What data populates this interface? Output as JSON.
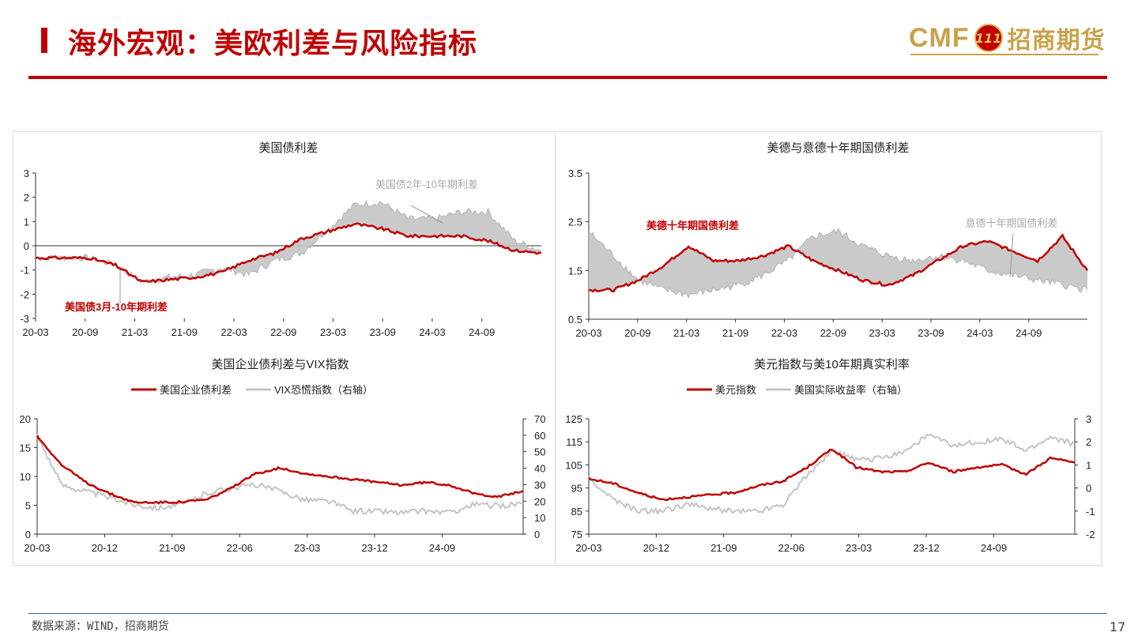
{
  "header": {
    "title": "海外宏观：美欧利差与风险指标",
    "logo_latin": "CMF",
    "logo_badge": "111",
    "logo_cn": "招商期货"
  },
  "footer": {
    "source": "数据来源：WIND，招商期货",
    "page": "17"
  },
  "colors": {
    "red": "#c00000",
    "gray": "#c4c4c4"
  },
  "chart_data": [
    {
      "type": "area",
      "title": "美国债利差",
      "x_ticks": [
        "20-03",
        "20-09",
        "21-03",
        "21-09",
        "22-03",
        "22-09",
        "23-03",
        "23-09",
        "24-03",
        "24-09"
      ],
      "ylim": [
        -3,
        3
      ],
      "y_ticks": [
        "-3",
        "-2",
        "-1",
        "0",
        "1",
        "2",
        "3"
      ],
      "grid": false,
      "x": [
        "20-03",
        "20-06",
        "20-09",
        "20-12",
        "21-03",
        "21-06",
        "21-09",
        "21-12",
        "22-03",
        "22-06",
        "22-09",
        "22-12",
        "23-03",
        "23-06",
        "23-09",
        "23-12",
        "24-03",
        "24-06",
        "24-09",
        "24-12"
      ],
      "series": [
        {
          "name": "美国债2年-10年期利差",
          "label": "美国债2年-10年期利差",
          "color": "#c4c4c4",
          "values": [
            -0.5,
            -0.5,
            -0.5,
            -0.8,
            -1.5,
            -1.3,
            -1.2,
            -0.9,
            -1.2,
            -0.6,
            -0.3,
            0.7,
            1.7,
            1.8,
            1.1,
            1.1,
            1.4,
            1.4,
            0.2,
            -0.2
          ]
        },
        {
          "name": "美国债3月-10年期利差",
          "label": "美国债3月-10年期利差",
          "color": "#c00000",
          "values": [
            -0.5,
            -0.5,
            -0.5,
            -0.8,
            -1.5,
            -1.4,
            -1.3,
            -1.1,
            -0.6,
            -0.3,
            0.3,
            0.6,
            0.9,
            0.7,
            0.4,
            0.4,
            0.4,
            0.2,
            -0.2,
            -0.3
          ]
        }
      ]
    },
    {
      "type": "area",
      "title": "美德与意德十年期国债利差",
      "x_ticks": [
        "20-03",
        "20-09",
        "21-03",
        "21-09",
        "22-03",
        "22-09",
        "23-03",
        "23-09",
        "24-03",
        "24-09"
      ],
      "ylim": [
        0.5,
        3.5
      ],
      "y_ticks": [
        "0.5",
        "1.5",
        "2.5",
        "3.5"
      ],
      "grid": false,
      "x": [
        "20-03",
        "20-06",
        "20-09",
        "20-12",
        "21-03",
        "21-06",
        "21-09",
        "21-12",
        "22-03",
        "22-06",
        "22-09",
        "22-12",
        "23-03",
        "23-06",
        "23-09",
        "23-12",
        "24-03",
        "24-06",
        "24-09",
        "24-12",
        "25-03"
      ],
      "series": [
        {
          "name": "意德十年期国债利差",
          "label": "意德十年期国债利差",
          "color": "#c4c4c4",
          "values": [
            2.3,
            1.8,
            1.3,
            1.1,
            1.0,
            1.1,
            1.2,
            1.4,
            1.7,
            2.2,
            2.3,
            2.0,
            1.8,
            1.7,
            1.8,
            1.7,
            1.5,
            1.4,
            1.3,
            1.2,
            1.1
          ]
        },
        {
          "name": "美德十年期国债利差",
          "label": "美德十年期国债利差",
          "color": "#c00000",
          "values": [
            1.1,
            1.1,
            1.3,
            1.6,
            2.0,
            1.7,
            1.7,
            1.8,
            2.0,
            1.7,
            1.5,
            1.3,
            1.2,
            1.4,
            1.7,
            2.0,
            2.1,
            1.9,
            1.7,
            2.2,
            1.5
          ]
        }
      ]
    },
    {
      "type": "line",
      "title": "美国企业债利差与VIX指数",
      "x_ticks": [
        "20-03",
        "20-12",
        "21-09",
        "22-06",
        "23-03",
        "23-12",
        "24-09"
      ],
      "ylim": [
        0,
        20
      ],
      "y_ticks": [
        "0",
        "5",
        "10",
        "15",
        "20"
      ],
      "y2lim": [
        0,
        70
      ],
      "y2_ticks": [
        "0",
        "10",
        "20",
        "30",
        "40",
        "50",
        "60",
        "70"
      ],
      "grid": false,
      "legend": "top",
      "x": [
        "20-03",
        "20-06",
        "20-09",
        "20-12",
        "21-03",
        "21-06",
        "21-09",
        "21-12",
        "22-03",
        "22-06",
        "22-09",
        "22-12",
        "23-03",
        "23-06",
        "23-09",
        "23-12",
        "24-03",
        "24-06",
        "24-09",
        "24-12",
        "25-02"
      ],
      "series": [
        {
          "name": "美国企业债利差",
          "axis": "left",
          "color": "#c00000",
          "values": [
            17,
            12,
            9,
            7,
            5.5,
            5.5,
            5.6,
            6,
            8,
            10.5,
            11.5,
            10.5,
            10,
            9.5,
            9,
            8.5,
            9,
            8.5,
            7,
            6.5,
            7.5
          ]
        },
        {
          "name": "VIX恐慌指数（右轴）",
          "axis": "right",
          "color": "#c4c4c4",
          "values": [
            60,
            30,
            26,
            22,
            18,
            16,
            18,
            25,
            28,
            30,
            26,
            21,
            20,
            14,
            14,
            13,
            14,
            13,
            18,
            17,
            19
          ]
        }
      ]
    },
    {
      "type": "line",
      "title": "美元指数与美10年期真实利率",
      "x_ticks": [
        "20-03",
        "20-12",
        "21-09",
        "22-06",
        "23-03",
        "23-12",
        "24-09"
      ],
      "ylim": [
        75,
        125
      ],
      "y_ticks": [
        "75",
        "85",
        "95",
        "105",
        "115",
        "125"
      ],
      "y2lim": [
        -2,
        3
      ],
      "y2_ticks": [
        "-2",
        "-1",
        "0",
        "1",
        "2",
        "3"
      ],
      "grid": false,
      "legend": "top",
      "x": [
        "20-03",
        "20-06",
        "20-09",
        "20-12",
        "21-03",
        "21-06",
        "21-09",
        "21-12",
        "22-03",
        "22-06",
        "22-09",
        "22-12",
        "23-03",
        "23-06",
        "23-09",
        "23-12",
        "24-03",
        "24-06",
        "24-09",
        "24-12",
        "25-02"
      ],
      "series": [
        {
          "name": "美元指数",
          "axis": "left",
          "color": "#c00000",
          "values": [
            99,
            97,
            93,
            90,
            91,
            92,
            93,
            96,
            98,
            104,
            112,
            104,
            102,
            102,
            106,
            102,
            104,
            105,
            101,
            108,
            106
          ]
        },
        {
          "name": "美国实际收益率（右轴）",
          "axis": "right",
          "color": "#c4c4c4",
          "values": [
            0.4,
            -0.5,
            -1.0,
            -1.0,
            -0.7,
            -0.9,
            -1.0,
            -1.0,
            -0.7,
            0.6,
            1.6,
            1.2,
            1.3,
            1.6,
            2.3,
            1.8,
            2.0,
            2.1,
            1.6,
            2.2,
            1.9
          ]
        }
      ]
    }
  ]
}
